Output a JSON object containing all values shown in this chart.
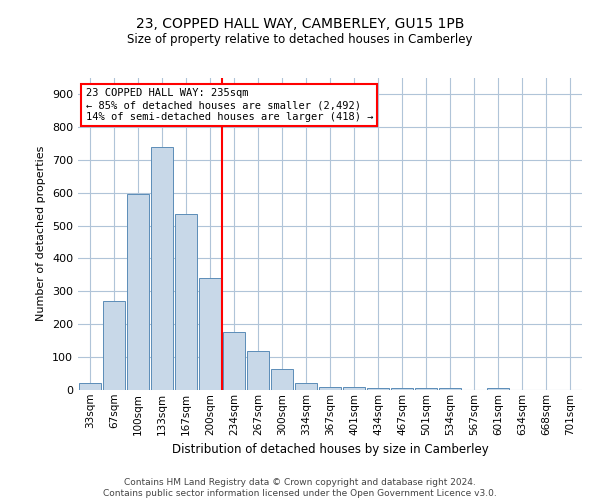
{
  "title": "23, COPPED HALL WAY, CAMBERLEY, GU15 1PB",
  "subtitle": "Size of property relative to detached houses in Camberley",
  "xlabel": "Distribution of detached houses by size in Camberley",
  "ylabel": "Number of detached properties",
  "bar_color": "#c8d8e8",
  "bar_edge_color": "#5b8db8",
  "grid_color": "#b0c4d8",
  "background_color": "#ffffff",
  "categories": [
    "33sqm",
    "67sqm",
    "100sqm",
    "133sqm",
    "167sqm",
    "200sqm",
    "234sqm",
    "267sqm",
    "300sqm",
    "334sqm",
    "367sqm",
    "401sqm",
    "434sqm",
    "467sqm",
    "501sqm",
    "534sqm",
    "567sqm",
    "601sqm",
    "634sqm",
    "668sqm",
    "701sqm"
  ],
  "values": [
    20,
    270,
    595,
    740,
    535,
    340,
    175,
    120,
    65,
    20,
    10,
    10,
    7,
    6,
    5,
    5,
    0,
    5,
    0,
    0,
    0
  ],
  "ylim": [
    0,
    950
  ],
  "yticks": [
    0,
    100,
    200,
    300,
    400,
    500,
    600,
    700,
    800,
    900
  ],
  "annotation_text": "23 COPPED HALL WAY: 235sqm\n← 85% of detached houses are smaller (2,492)\n14% of semi-detached houses are larger (418) →",
  "vline_x": 6.0,
  "footer_line1": "Contains HM Land Registry data © Crown copyright and database right 2024.",
  "footer_line2": "Contains public sector information licensed under the Open Government Licence v3.0."
}
